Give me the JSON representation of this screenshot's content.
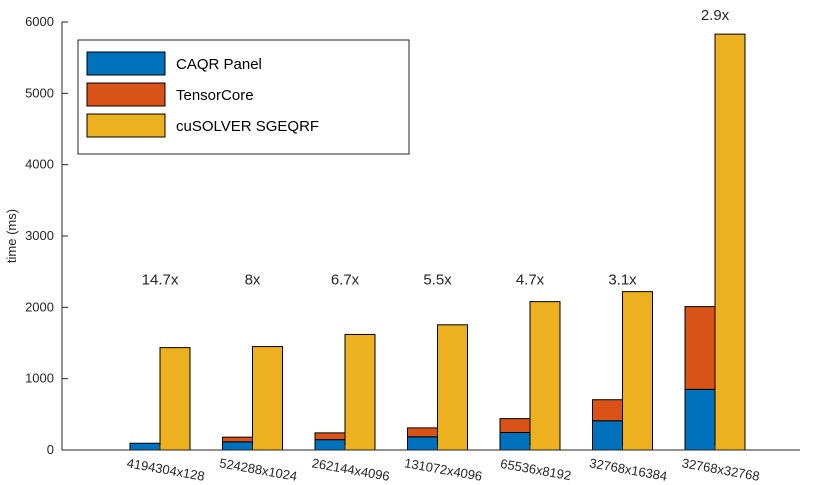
{
  "chart_data": {
    "type": "bar",
    "stacked_grouped": true,
    "title": "",
    "xlabel": "",
    "ylabel": "time (ms)",
    "ylim": [
      0,
      6000
    ],
    "yticks": [
      0,
      1000,
      2000,
      3000,
      4000,
      5000,
      6000
    ],
    "grid": false,
    "legend_position": "top-left",
    "categories": [
      "4194304x128",
      "524288x1024",
      "262144x4096",
      "131072x4096",
      "65536x8192",
      "32768x16384",
      "32768x32768"
    ],
    "series": [
      {
        "name": "CAQR Panel",
        "color": "#0072BD",
        "group": "stack",
        "values": [
          95,
          115,
          145,
          185,
          245,
          410,
          850
        ]
      },
      {
        "name": "TensorCore",
        "color": "#D95319",
        "group": "stack",
        "values": [
          0,
          65,
          95,
          125,
          195,
          295,
          1160
        ]
      },
      {
        "name": "cuSOLVER SGEQRF",
        "color": "#EDB120",
        "group": "single",
        "values": [
          1435,
          1450,
          1620,
          1755,
          2080,
          2220,
          5830
        ]
      }
    ],
    "annotations": [
      "14.7x",
      "8x",
      "6.7x",
      "5.5x",
      "4.7x",
      "3.1x",
      "2.9x"
    ]
  }
}
